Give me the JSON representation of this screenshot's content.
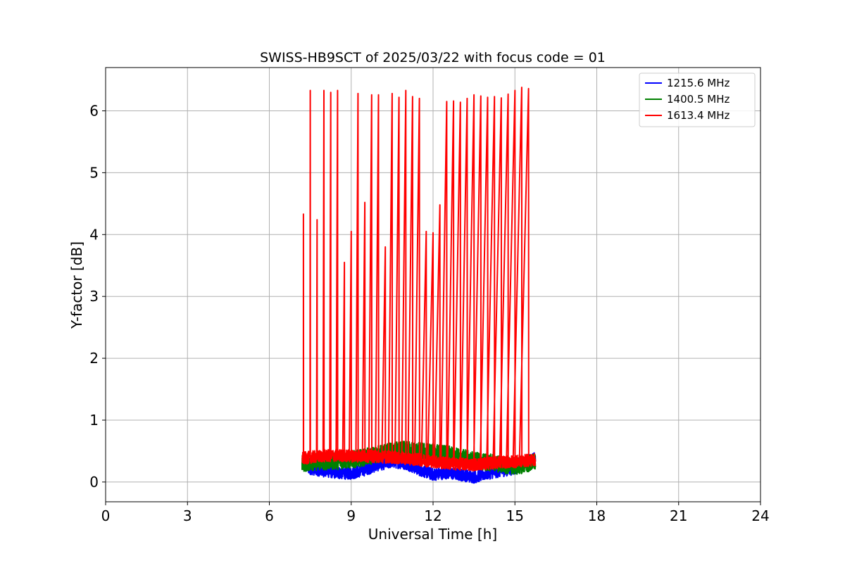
{
  "chart_data": {
    "type": "line",
    "title": "SWISS-HB9SCT of 2025/03/22 with focus code = 01",
    "xlabel": "Universal Time [h]",
    "ylabel": "Y-factor [dB]",
    "xlim": [
      0,
      24
    ],
    "ylim": [
      -0.32,
      6.7
    ],
    "xticks": [
      0,
      3,
      6,
      9,
      12,
      15,
      18,
      21,
      24
    ],
    "yticks": [
      0,
      1,
      2,
      3,
      4,
      5,
      6
    ],
    "grid": true,
    "legend_position": "top-right",
    "series": [
      {
        "name": "1215.6 MHz",
        "color": "#0000ff",
        "x": [
          7.2,
          7.5,
          8.0,
          8.5,
          9.0,
          9.5,
          10.0,
          10.5,
          11.0,
          11.5,
          12.0,
          12.5,
          13.0,
          13.5,
          14.0,
          14.5,
          15.0,
          15.5,
          15.75
        ],
        "y": [
          0.28,
          0.22,
          0.18,
          0.15,
          0.14,
          0.2,
          0.28,
          0.33,
          0.3,
          0.2,
          0.12,
          0.15,
          0.12,
          0.08,
          0.14,
          0.18,
          0.22,
          0.35,
          0.38
        ],
        "noise": 0.1
      },
      {
        "name": "1400.5 MHz",
        "color": "#008000",
        "x": [
          7.2,
          7.5,
          8.0,
          8.5,
          9.0,
          9.5,
          10.0,
          10.5,
          11.0,
          11.5,
          12.0,
          12.5,
          13.0,
          13.5,
          14.0,
          14.5,
          15.0,
          15.5,
          15.75
        ],
        "y": [
          0.3,
          0.32,
          0.33,
          0.34,
          0.36,
          0.4,
          0.45,
          0.5,
          0.52,
          0.5,
          0.48,
          0.45,
          0.4,
          0.35,
          0.32,
          0.28,
          0.25,
          0.3,
          0.32
        ],
        "noise": 0.14
      },
      {
        "name": "1613.4 MHz",
        "color": "#ff0000",
        "x": [
          7.2,
          7.5,
          8.0,
          8.5,
          9.0,
          9.5,
          10.0,
          10.5,
          11.0,
          11.5,
          12.0,
          12.5,
          13.0,
          13.5,
          14.0,
          14.5,
          15.0,
          15.5,
          15.75
        ],
        "y": [
          0.38,
          0.4,
          0.42,
          0.43,
          0.42,
          0.42,
          0.41,
          0.4,
          0.38,
          0.36,
          0.33,
          0.3,
          0.29,
          0.28,
          0.3,
          0.32,
          0.33,
          0.35,
          0.36
        ],
        "noise": 0.1,
        "spikes": [
          {
            "x": 7.25,
            "y": 4.33
          },
          {
            "x": 7.5,
            "y": 6.33
          },
          {
            "x": 7.75,
            "y": 4.24
          },
          {
            "x": 8.0,
            "y": 6.33
          },
          {
            "x": 8.25,
            "y": 6.3
          },
          {
            "x": 8.5,
            "y": 6.33
          },
          {
            "x": 8.75,
            "y": 3.55
          },
          {
            "x": 9.0,
            "y": 4.05
          },
          {
            "x": 9.25,
            "y": 6.28
          },
          {
            "x": 9.5,
            "y": 4.52
          },
          {
            "x": 9.75,
            "y": 6.26
          },
          {
            "x": 10.0,
            "y": 6.26
          },
          {
            "x": 10.25,
            "y": 3.8
          },
          {
            "x": 10.5,
            "y": 6.28
          },
          {
            "x": 10.75,
            "y": 6.22
          },
          {
            "x": 11.0,
            "y": 6.33
          },
          {
            "x": 11.25,
            "y": 6.23
          },
          {
            "x": 11.5,
            "y": 6.2
          },
          {
            "x": 11.75,
            "y": 4.05
          },
          {
            "x": 12.0,
            "y": 4.03
          },
          {
            "x": 12.25,
            "y": 4.48
          },
          {
            "x": 12.5,
            "y": 6.15
          },
          {
            "x": 12.75,
            "y": 6.16
          },
          {
            "x": 13.0,
            "y": 6.14
          },
          {
            "x": 13.25,
            "y": 6.2
          },
          {
            "x": 13.5,
            "y": 6.26
          },
          {
            "x": 13.75,
            "y": 6.24
          },
          {
            "x": 14.0,
            "y": 6.22
          },
          {
            "x": 14.25,
            "y": 6.23
          },
          {
            "x": 14.5,
            "y": 6.21
          },
          {
            "x": 14.75,
            "y": 6.27
          },
          {
            "x": 15.0,
            "y": 6.33
          },
          {
            "x": 15.25,
            "y": 6.38
          },
          {
            "x": 15.5,
            "y": 6.36
          }
        ]
      }
    ]
  }
}
